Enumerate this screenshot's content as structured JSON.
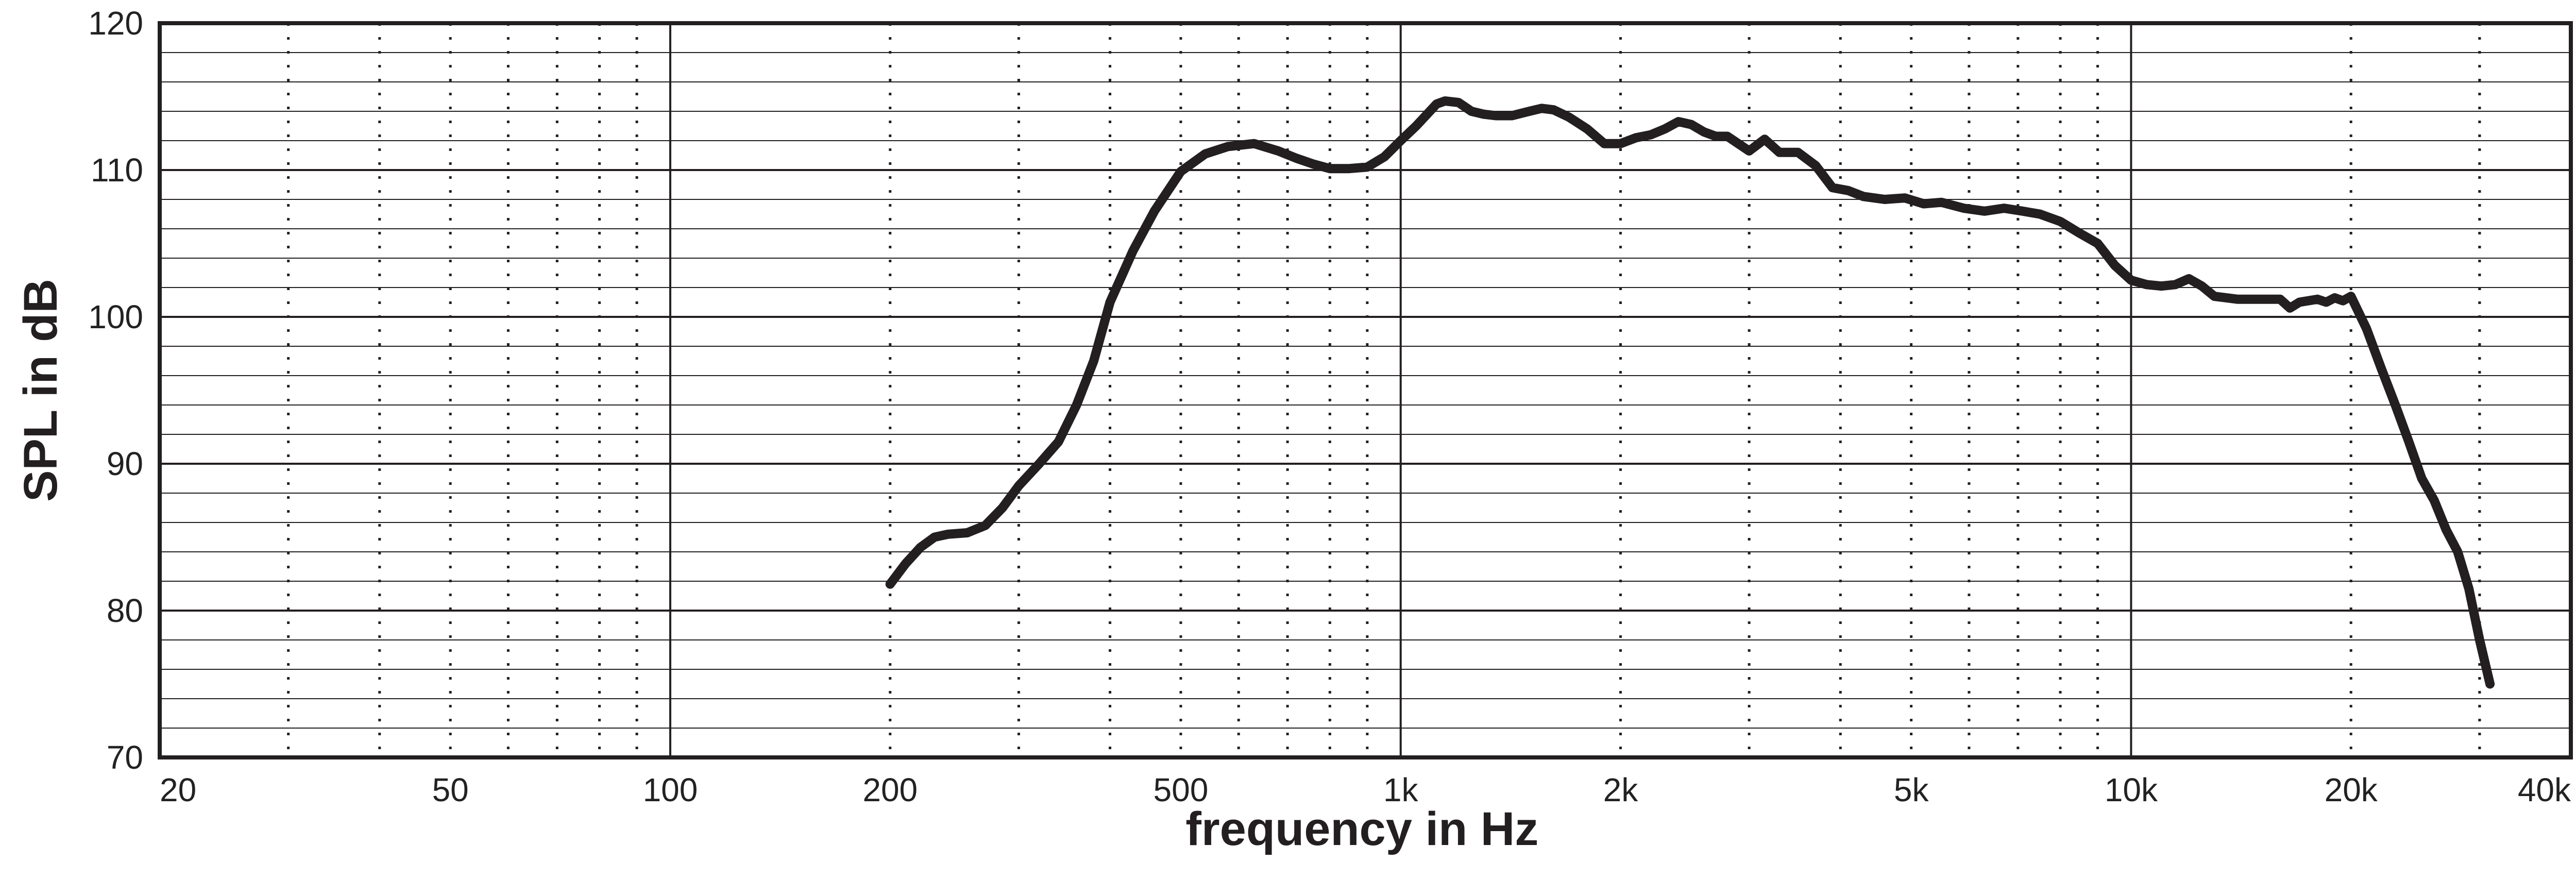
{
  "chart_data": {
    "type": "line",
    "title": "",
    "xlabel": "frequency in Hz",
    "ylabel": "SPL in dB",
    "xscale": "log",
    "xlim": [
      20,
      40000
    ],
    "ylim": [
      70,
      120
    ],
    "grid": true,
    "legend": "none",
    "x_ticks": [
      {
        "value": 20,
        "label": "20"
      },
      {
        "value": 50,
        "label": "50"
      },
      {
        "value": 100,
        "label": "100"
      },
      {
        "value": 200,
        "label": "200"
      },
      {
        "value": 500,
        "label": "500"
      },
      {
        "value": 1000,
        "label": "1k"
      },
      {
        "value": 2000,
        "label": "2k"
      },
      {
        "value": 5000,
        "label": "5k"
      },
      {
        "value": 10000,
        "label": "10k"
      },
      {
        "value": 20000,
        "label": "20k"
      },
      {
        "value": 40000,
        "label": "40k"
      }
    ],
    "y_ticks": [
      {
        "value": 70,
        "label": "70"
      },
      {
        "value": 80,
        "label": "80"
      },
      {
        "value": 90,
        "label": "90"
      },
      {
        "value": 100,
        "label": "100"
      },
      {
        "value": 110,
        "label": "110"
      },
      {
        "value": 120,
        "label": "120"
      }
    ],
    "colors": {
      "line": "#231f20",
      "frame": "#231f20",
      "grid": "#231f20"
    },
    "series": [
      {
        "x": [
          200,
          210,
          220,
          230,
          240,
          255,
          270,
          285,
          300,
          320,
          340,
          360,
          380,
          400,
          430,
          460,
          500,
          540,
          580,
          630,
          680,
          720,
          760,
          800,
          850,
          900,
          950,
          1000,
          1050,
          1120,
          1150,
          1200,
          1250,
          1300,
          1350,
          1420,
          1500,
          1560,
          1620,
          1700,
          1800,
          1900,
          2000,
          2100,
          2200,
          2300,
          2400,
          2500,
          2600,
          2700,
          2800,
          3000,
          3150,
          3300,
          3500,
          3700,
          3900,
          4100,
          4300,
          4600,
          4900,
          5200,
          5500,
          5900,
          6300,
          6700,
          7100,
          7500,
          8000,
          8500,
          9000,
          9500,
          10000,
          10500,
          11000,
          11500,
          12000,
          12500,
          13000,
          14000,
          15000,
          16000,
          16500,
          17000,
          18000,
          18500,
          19000,
          19500,
          20000,
          21000,
          22000,
          23000,
          24000,
          25000,
          26000,
          27000,
          28000,
          29000,
          30000,
          31000
        ],
        "y": [
          81.8,
          83.2,
          84.3,
          85.0,
          85.2,
          85.3,
          85.8,
          87.0,
          88.5,
          90.0,
          91.5,
          94.0,
          97.0,
          101.0,
          104.5,
          107.2,
          109.9,
          111.1,
          111.6,
          111.8,
          111.3,
          110.8,
          110.4,
          110.1,
          110.1,
          110.2,
          110.9,
          112.0,
          113.0,
          114.5,
          114.7,
          114.6,
          114.0,
          113.8,
          113.7,
          113.7,
          114.0,
          114.2,
          114.1,
          113.6,
          112.8,
          111.8,
          111.8,
          112.2,
          112.4,
          112.8,
          113.3,
          113.1,
          112.6,
          112.3,
          112.3,
          111.3,
          112.1,
          111.2,
          111.2,
          110.3,
          108.8,
          108.6,
          108.2,
          108.0,
          108.1,
          107.7,
          107.8,
          107.4,
          107.2,
          107.4,
          107.2,
          107.0,
          106.5,
          105.7,
          105.0,
          103.5,
          102.5,
          102.2,
          102.1,
          102.2,
          102.6,
          102.1,
          101.4,
          101.2,
          101.2,
          101.2,
          100.6,
          101.0,
          101.2,
          101.0,
          101.3,
          101.1,
          101.4,
          99.2,
          96.5,
          94.0,
          91.5,
          89.0,
          87.5,
          85.5,
          84.0,
          81.5,
          78.0,
          75.0
        ]
      }
    ]
  }
}
